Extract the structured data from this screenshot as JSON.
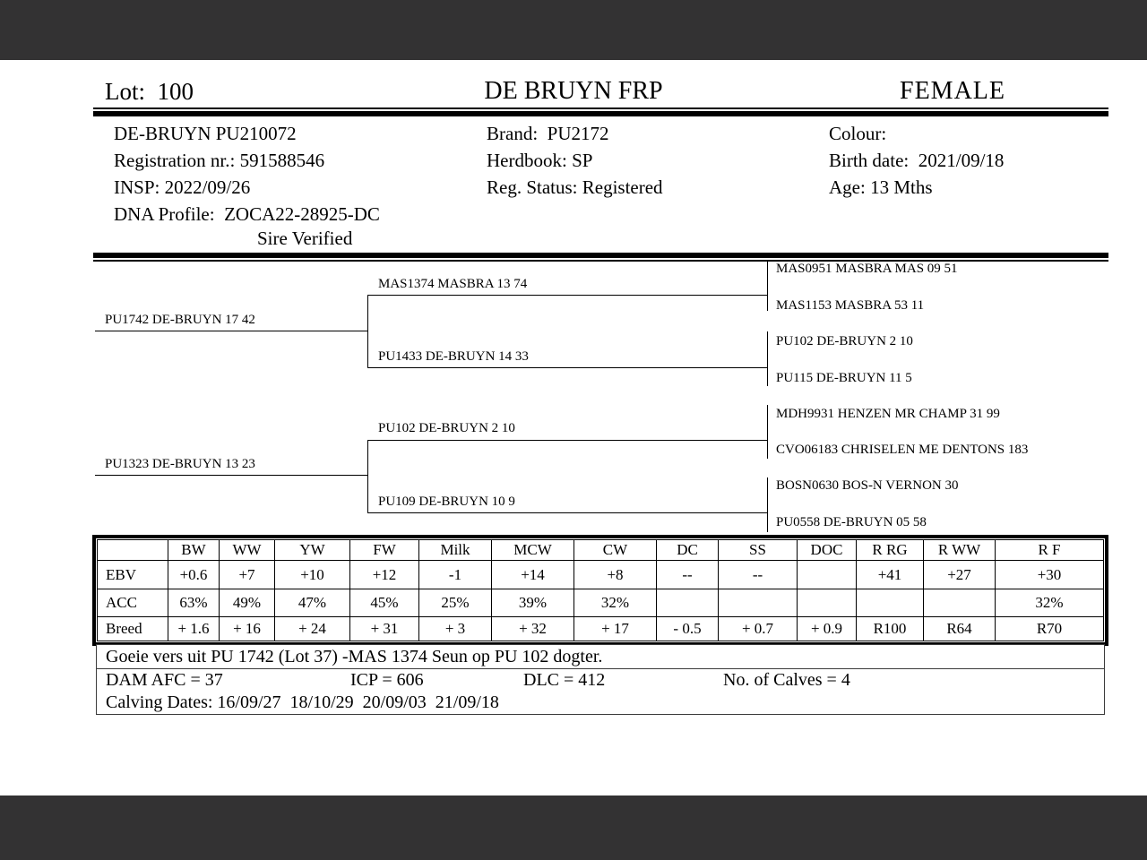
{
  "header": {
    "lot": "Lot:  100",
    "herd_name": "DE BRUYN FRP",
    "sex": "FEMALE"
  },
  "details": {
    "left": [
      "DE-BRUYN PU210072",
      "Registration nr.: 591588546",
      "INSP: 2022/09/26",
      "DNA Profile:  ZOCA22-28925-DC"
    ],
    "sire_verified": "Sire Verified",
    "middle": [
      "Brand:  PU2172",
      "Herdbook: SP",
      "Reg. Status: Registered"
    ],
    "right": [
      "Colour:",
      "Birth date:  2021/09/18",
      "Age: 13 Mths"
    ]
  },
  "pedigree": {
    "sire": "PU1742 DE-BRUYN 17 42",
    "sire_sire": "MAS1374 MASBRA 13 74",
    "sire_dam": "PU1433 DE-BRUYN 14 33",
    "dam": "PU1323 DE-BRUYN 13 23",
    "dam_sire": "PU102 DE-BRUYN 2 10",
    "dam_dam": "PU109 DE-BRUYN 10 9",
    "gen3": [
      "MAS0951 MASBRA MAS 09 51",
      "MAS1153 MASBRA 53 11",
      "PU102 DE-BRUYN 2 10",
      "PU115 DE-BRUYN 11 5",
      "MDH9931 HENZEN MR CHAMP 31 99",
      "CVO06183 CHRISELEN ME DENTONS 183",
      "BOSN0630 BOS-N VERNON 30",
      "PU0558 DE-BRUYN 05 58"
    ]
  },
  "ebv_table": {
    "columns": [
      "",
      "BW",
      "WW",
      "YW",
      "FW",
      "Milk",
      "MCW",
      "CW",
      "DC",
      "SS",
      "DOC",
      "R RG",
      "R WW",
      "R F"
    ],
    "rows": [
      {
        "label": "EBV",
        "values": [
          "+0.6",
          "+7",
          "+10",
          "+12",
          "-1",
          "+14",
          "+8",
          "--",
          "--",
          "",
          "+41",
          "+27",
          "+30"
        ]
      },
      {
        "label": "ACC",
        "values": [
          "63%",
          "49%",
          "47%",
          "45%",
          "25%",
          "39%",
          "32%",
          "",
          "",
          "",
          "",
          "",
          "32%"
        ]
      },
      {
        "label": "Breed",
        "values": [
          "+ 1.6",
          "+ 16",
          "+ 24",
          "+ 31",
          "+ 3",
          "+ 32",
          "+ 17",
          "- 0.5",
          "+ 0.7",
          "+ 0.9",
          "R100",
          "R64",
          "R70"
        ]
      }
    ]
  },
  "notes": {
    "comment": "Goeie vers uit PU 1742 (Lot 37) -MAS 1374 Seun op PU 102 dogter.",
    "dam_afc": "DAM AFC = 37",
    "icp": "ICP = 606",
    "dlc": "DLC = 412",
    "calves": "No. of Calves = 4",
    "calving_dates": "Calving Dates: 16/09/27  18/10/29  20/09/03  21/09/18"
  },
  "colors": {
    "frame_bar": "#333233",
    "paper": "#ffffff",
    "ink": "#000000"
  }
}
